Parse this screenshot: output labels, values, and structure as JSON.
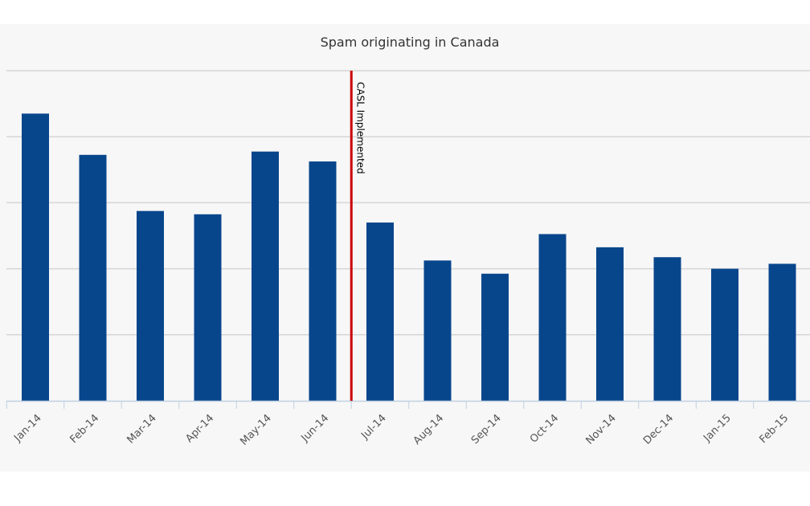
{
  "chart_data": {
    "type": "bar",
    "title": "Spam originating in Canada",
    "xlabel": "",
    "ylabel": "",
    "categories": [
      "Jan-14",
      "Feb-14",
      "Mar-14",
      "Apr-14",
      "May-14",
      "Jun-14",
      "Jul-14",
      "Aug-14",
      "Sep-14",
      "Oct-14",
      "Nov-14",
      "Dec-14",
      "Jan-15",
      "Feb-15"
    ],
    "values": [
      87,
      74.5,
      57.5,
      56.5,
      75.5,
      72.5,
      54,
      42.5,
      38.5,
      50.5,
      46.5,
      43.5,
      40,
      41.5
    ],
    "ylim": [
      0,
      100
    ],
    "grid": true,
    "bar_color": "#08468c",
    "annotations": [
      {
        "label": "CASL Implemented",
        "position_between": [
          "Jun-14",
          "Jul-14"
        ],
        "color": "#cc0000"
      }
    ]
  }
}
